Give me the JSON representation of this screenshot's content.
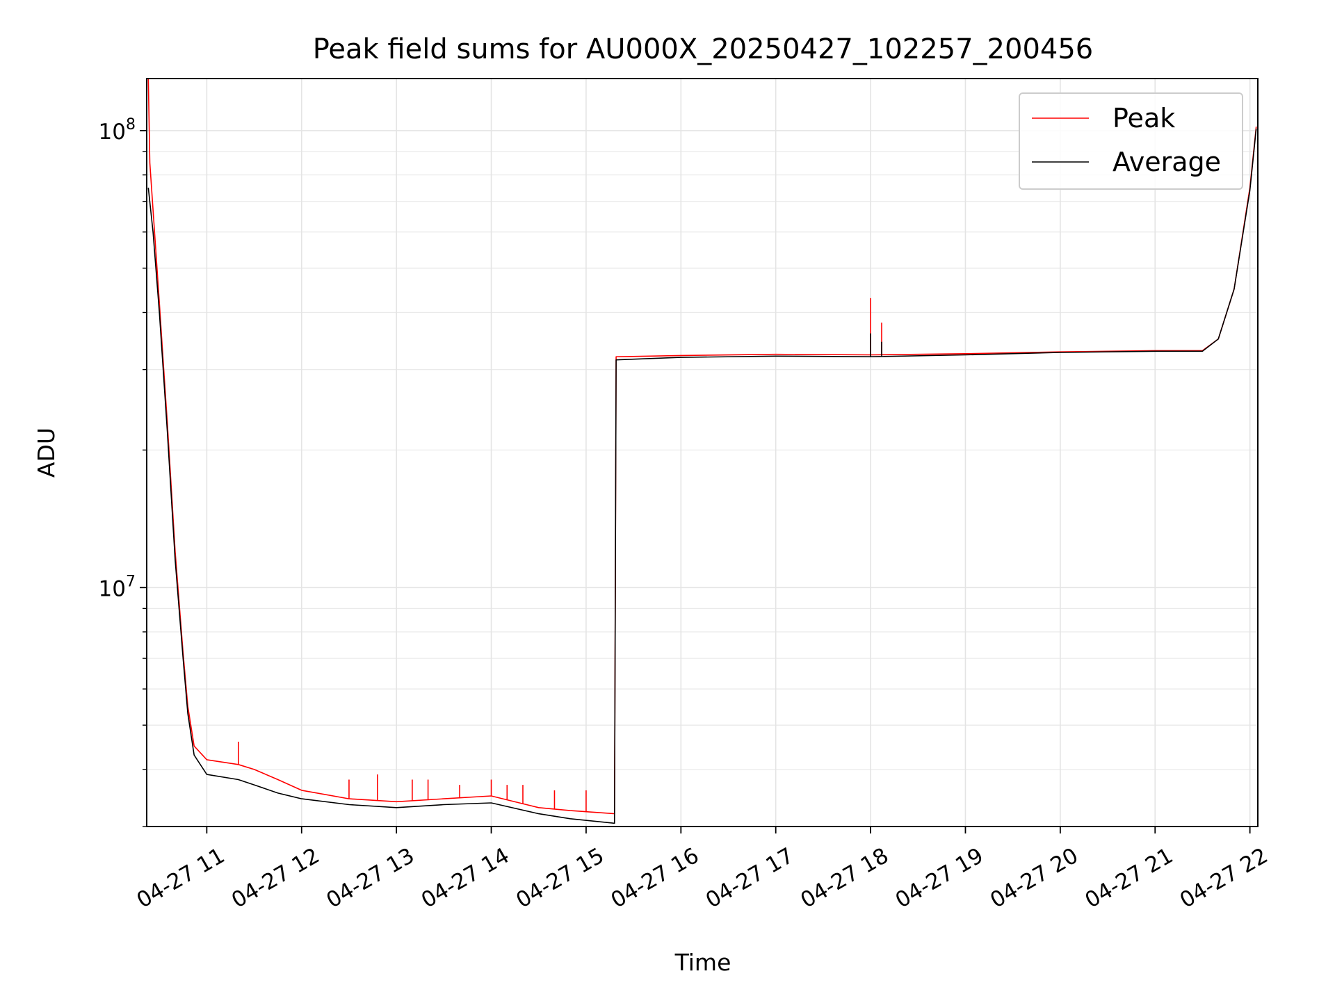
{
  "chart_data": {
    "type": "line",
    "title": "Peak field sums for AU000X_20250427_102257_200456",
    "xlabel": "Time",
    "ylabel": "ADU",
    "yscale": "log",
    "ylim": [
      3000000,
      130000000
    ],
    "xlim": [
      "2025-04-27 10:22",
      "2025-04-27 22:05"
    ],
    "grid": true,
    "legend": "top-right",
    "x_ticks": [
      {
        "t": "2025-04-27 11:00",
        "label": "04-27 11"
      },
      {
        "t": "2025-04-27 12:00",
        "label": "04-27 12"
      },
      {
        "t": "2025-04-27 13:00",
        "label": "04-27 13"
      },
      {
        "t": "2025-04-27 14:00",
        "label": "04-27 14"
      },
      {
        "t": "2025-04-27 15:00",
        "label": "04-27 15"
      },
      {
        "t": "2025-04-27 16:00",
        "label": "04-27 16"
      },
      {
        "t": "2025-04-27 17:00",
        "label": "04-27 17"
      },
      {
        "t": "2025-04-27 18:00",
        "label": "04-27 18"
      },
      {
        "t": "2025-04-27 19:00",
        "label": "04-27 19"
      },
      {
        "t": "2025-04-27 20:00",
        "label": "04-27 20"
      },
      {
        "t": "2025-04-27 21:00",
        "label": "04-27 21"
      },
      {
        "t": "2025-04-27 22:00",
        "label": "04-27 22"
      }
    ],
    "y_ticks": [
      {
        "value": 10000000,
        "base": "10",
        "exp": "7"
      },
      {
        "value": 100000000,
        "base": "10",
        "exp": "8"
      }
    ],
    "series": [
      {
        "name": "Peak",
        "color": "#ff0000",
        "points": [
          [
            "2025-04-27 10:23",
            130000000
          ],
          [
            "2025-04-27 10:24",
            85000000
          ],
          [
            "2025-04-27 10:30",
            42000000
          ],
          [
            "2025-04-27 10:32",
            33000000
          ],
          [
            "2025-04-27 10:35",
            23000000
          ],
          [
            "2025-04-27 10:40",
            12000000
          ],
          [
            "2025-04-27 10:45",
            7200000
          ],
          [
            "2025-04-27 10:48",
            5500000
          ],
          [
            "2025-04-27 10:52",
            4500000
          ],
          [
            "2025-04-27 11:00",
            4200000
          ],
          [
            "2025-04-27 11:20",
            4100000
          ],
          [
            "2025-04-27 11:30",
            4000000
          ],
          [
            "2025-04-27 11:45",
            3800000
          ],
          [
            "2025-04-27 12:00",
            3600000
          ],
          [
            "2025-04-27 12:30",
            3450000
          ],
          [
            "2025-04-27 13:00",
            3400000
          ],
          [
            "2025-04-27 13:30",
            3450000
          ],
          [
            "2025-04-27 14:00",
            3500000
          ],
          [
            "2025-04-27 14:30",
            3300000
          ],
          [
            "2025-04-27 14:50",
            3250000
          ],
          [
            "2025-04-27 15:18",
            3200000
          ],
          [
            "2025-04-27 15:19",
            32000000
          ],
          [
            "2025-04-27 16:00",
            32200000
          ],
          [
            "2025-04-27 17:00",
            32400000
          ],
          [
            "2025-04-27 18:00",
            32300000
          ],
          [
            "2025-04-27 19:00",
            32500000
          ],
          [
            "2025-04-27 20:00",
            32800000
          ],
          [
            "2025-04-27 21:00",
            33000000
          ],
          [
            "2025-04-27 21:30",
            33000000
          ],
          [
            "2025-04-27 21:40",
            35000000
          ],
          [
            "2025-04-27 21:50",
            45000000
          ],
          [
            "2025-04-27 22:00",
            75000000
          ],
          [
            "2025-04-27 22:04",
            102000000
          ]
        ],
        "spikes": [
          [
            "2025-04-27 10:32",
            32000000
          ],
          [
            "2025-04-27 11:20",
            4600000
          ],
          [
            "2025-04-27 12:30",
            3800000
          ],
          [
            "2025-04-27 12:48",
            3900000
          ],
          [
            "2025-04-27 13:10",
            3800000
          ],
          [
            "2025-04-27 13:20",
            3800000
          ],
          [
            "2025-04-27 13:40",
            3700000
          ],
          [
            "2025-04-27 14:00",
            3800000
          ],
          [
            "2025-04-27 14:10",
            3700000
          ],
          [
            "2025-04-27 14:20",
            3700000
          ],
          [
            "2025-04-27 14:40",
            3600000
          ],
          [
            "2025-04-27 15:00",
            3600000
          ],
          [
            "2025-04-27 18:00",
            43000000
          ],
          [
            "2025-04-27 18:07",
            38000000
          ]
        ]
      },
      {
        "name": "Average",
        "color": "#000000",
        "points": [
          [
            "2025-04-27 10:23",
            75000000
          ],
          [
            "2025-04-27 10:26",
            60000000
          ],
          [
            "2025-04-27 10:30",
            40000000
          ],
          [
            "2025-04-27 10:35",
            22000000
          ],
          [
            "2025-04-27 10:40",
            11500000
          ],
          [
            "2025-04-27 10:45",
            7000000
          ],
          [
            "2025-04-27 10:48",
            5300000
          ],
          [
            "2025-04-27 10:52",
            4300000
          ],
          [
            "2025-04-27 11:00",
            3900000
          ],
          [
            "2025-04-27 11:20",
            3800000
          ],
          [
            "2025-04-27 11:30",
            3700000
          ],
          [
            "2025-04-27 11:45",
            3550000
          ],
          [
            "2025-04-27 12:00",
            3450000
          ],
          [
            "2025-04-27 12:30",
            3350000
          ],
          [
            "2025-04-27 13:00",
            3300000
          ],
          [
            "2025-04-27 13:30",
            3350000
          ],
          [
            "2025-04-27 14:00",
            3380000
          ],
          [
            "2025-04-27 14:30",
            3200000
          ],
          [
            "2025-04-27 14:50",
            3120000
          ],
          [
            "2025-04-27 15:18",
            3050000
          ],
          [
            "2025-04-27 15:19",
            31500000
          ],
          [
            "2025-04-27 16:00",
            31900000
          ],
          [
            "2025-04-27 17:00",
            32100000
          ],
          [
            "2025-04-27 18:00",
            32000000
          ],
          [
            "2025-04-27 19:00",
            32300000
          ],
          [
            "2025-04-27 20:00",
            32700000
          ],
          [
            "2025-04-27 21:00",
            32900000
          ],
          [
            "2025-04-27 21:30",
            32900000
          ],
          [
            "2025-04-27 21:40",
            35000000
          ],
          [
            "2025-04-27 21:50",
            45000000
          ],
          [
            "2025-04-27 22:00",
            74000000
          ],
          [
            "2025-04-27 22:04",
            101000000
          ]
        ],
        "spikes": [
          [
            "2025-04-27 18:00",
            36000000
          ],
          [
            "2025-04-27 18:07",
            34500000
          ]
        ]
      }
    ]
  }
}
